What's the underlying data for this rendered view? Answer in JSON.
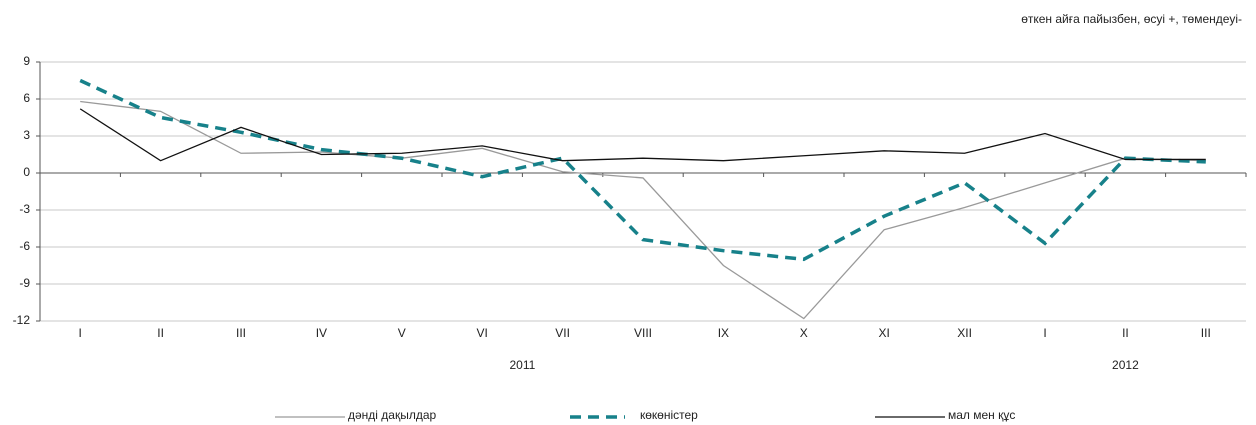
{
  "chart_data": {
    "type": "line",
    "subtitle": "өткен айға пайызбен, өсуі +, төмендеуі-",
    "groups": [
      {
        "name": "2011",
        "categories": [
          "I",
          "II",
          "III",
          "IV",
          "V",
          "VI",
          "VII",
          "VIII",
          "IX",
          "X",
          "XI",
          "XII"
        ]
      },
      {
        "name": "2012",
        "categories": [
          "I",
          "II",
          "III"
        ]
      }
    ],
    "series": [
      {
        "name": "дәнді дақылдар",
        "color": "#9a9a9a",
        "dash": false,
        "values": [
          5.8,
          5.0,
          1.6,
          1.7,
          1.2,
          2.0,
          0.1,
          -0.4,
          -7.5,
          -11.8,
          -4.6,
          -2.8,
          -0.8,
          1.2,
          1.0
        ]
      },
      {
        "name": "көкөністер",
        "color": "#17818a",
        "dash": true,
        "values": [
          7.5,
          4.5,
          3.3,
          1.9,
          1.2,
          -0.3,
          1.2,
          -5.4,
          -6.3,
          -7.0,
          -3.5,
          -0.8,
          -5.7,
          1.2,
          0.9
        ]
      },
      {
        "name": "мал мен құс",
        "color": "#111111",
        "dash": false,
        "values": [
          5.2,
          1.0,
          3.7,
          1.5,
          1.6,
          2.2,
          1.0,
          1.2,
          1.0,
          1.4,
          1.8,
          1.6,
          3.2,
          1.1,
          1.1
        ]
      }
    ],
    "ylim": [
      -12,
      9
    ],
    "yticks": [
      9,
      6,
      3,
      0,
      -3,
      -6,
      -9,
      -12
    ],
    "grid": true
  }
}
